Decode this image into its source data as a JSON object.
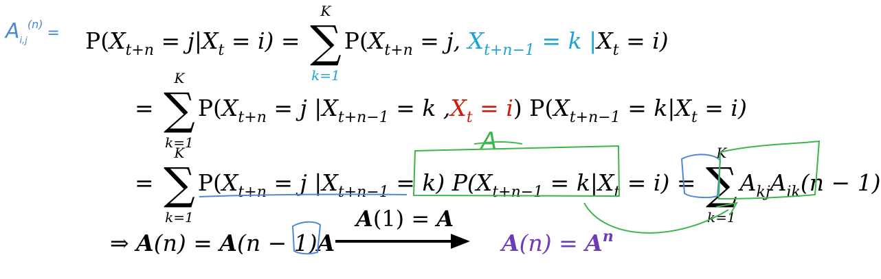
{
  "annotations": {
    "lhs_label": "A",
    "lhs_label_sub": "i,j",
    "lhs_label_sup": "(n)",
    "lhs_label_eq": "=",
    "matrix_A": "A"
  },
  "sum": {
    "upper": "K",
    "lower": "k=1",
    "symbol": "∑"
  },
  "line1": {
    "p": "P(",
    "x1": "X",
    "x1_sub": "t+n",
    "mid1": " = j|",
    "x2": "X",
    "x2_sub": "t",
    "mid2": " = i)  = ",
    "p2": "P(",
    "x3": "X",
    "x3_sub": "t+n",
    "mid3": " = j, ",
    "c1": "X",
    "c1_sub": "t+n−1",
    "c2": " = k |",
    "x4": "X",
    "x4_sub": "t",
    "mid4": " = i)"
  },
  "line2": {
    "eq": "= ",
    "p": "P(",
    "x1": "X",
    "x1_sub": "t+n",
    "mid1": " = j |",
    "x2": "X",
    "x2_sub": "t+n−1",
    "mid2": " = k ,",
    "r1": "X",
    "r1_sub": "t",
    "r2": " = i",
    "mid3": ") P(",
    "x3": "X",
    "x3_sub": "t+n−1",
    "mid4": " = k|",
    "x4": "X",
    "x4_sub": "t",
    "mid5": " = i)"
  },
  "line3": {
    "eq": "= ",
    "p": "P(",
    "x1": "X",
    "x1_sub": "t+n",
    "mid1": " = j |",
    "x2": "X",
    "x2_sub": "t+n−1",
    "mid2": " = k) P(",
    "x3": "X",
    "x3_sub": "t+n−1",
    "mid3": " = k|",
    "x4": "X",
    "x4_sub": "t",
    "mid4": " = i) = ",
    "a1": "A",
    "a1_sub": "kj",
    "a2": "A",
    "a2_sub": "ik",
    "a2_tail": "(n − 1)"
  },
  "line4": {
    "implies": "⇒ ",
    "a1": "A",
    "t1": "(n) = ",
    "a2": "A",
    "t2": "(n − 1)",
    "a3": "A",
    "arrow_label_a": "A",
    "arrow_label_mid": "(1) = ",
    "arrow_label_b": "A",
    "res_a": "A",
    "res_mid": "(n) = ",
    "res_b": "A",
    "res_sup": "n"
  },
  "colors": {
    "cyan": "#1fa3d6",
    "red": "#d1180b",
    "purple": "#6d3bb5",
    "ink_blue": "#4f86d9",
    "ink_green": "#3cb54a"
  }
}
